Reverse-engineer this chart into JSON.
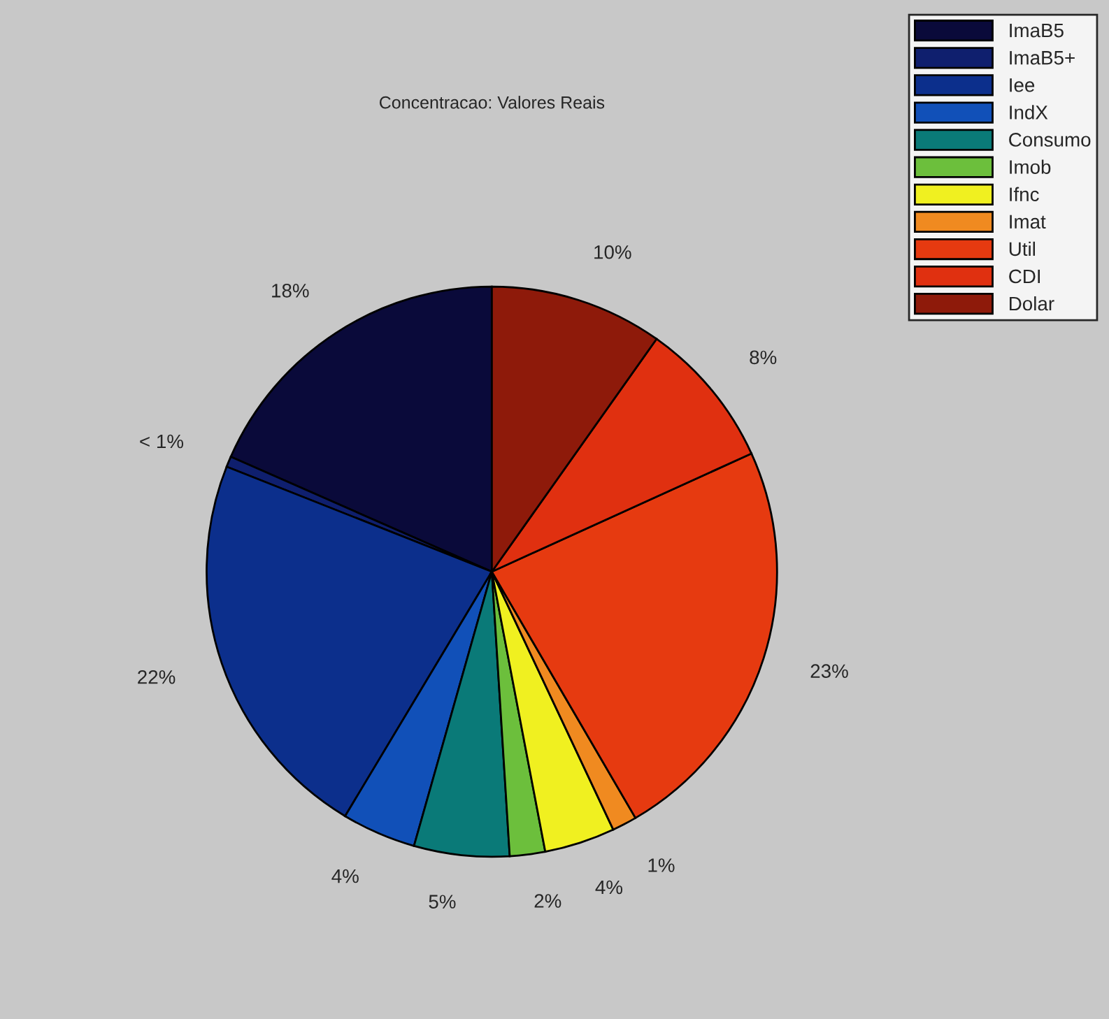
{
  "chart_data": {
    "type": "pie",
    "title": "Concentracao: Valores Reais",
    "categories": [
      "ImaB5",
      "ImaB5+",
      "Iee",
      "IndX",
      "Consumo",
      "Imob",
      "Ifnc",
      "Imat",
      "Util",
      "CDI",
      "Dolar"
    ],
    "values": [
      18.4,
      0.6,
      22.4,
      4.2,
      5.4,
      2.0,
      4.0,
      1.4,
      23.4,
      8.4,
      9.8
    ],
    "value_labels": [
      "18%",
      "< 1%",
      "22%",
      "4%",
      "5%",
      "2%",
      "4%",
      "1%",
      "23%",
      "8%",
      "10%"
    ],
    "colors": [
      "#0a0a3a",
      "#0f1f6e",
      "#0c2f8c",
      "#1150b8",
      "#0a7a78",
      "#6cbf3c",
      "#f0f020",
      "#f08a20",
      "#e63a10",
      "#e03010",
      "#8e1a0a"
    ],
    "legend": "top right"
  }
}
